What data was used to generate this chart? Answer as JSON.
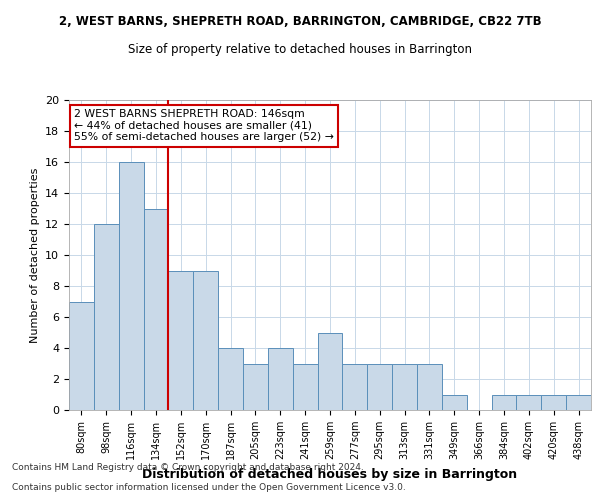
{
  "title1": "2, WEST BARNS, SHEPRETH ROAD, BARRINGTON, CAMBRIDGE, CB22 7TB",
  "title2": "Size of property relative to detached houses in Barrington",
  "xlabel": "Distribution of detached houses by size in Barrington",
  "ylabel": "Number of detached properties",
  "categories": [
    "80sqm",
    "98sqm",
    "116sqm",
    "134sqm",
    "152sqm",
    "170sqm",
    "187sqm",
    "205sqm",
    "223sqm",
    "241sqm",
    "259sqm",
    "277sqm",
    "295sqm",
    "313sqm",
    "331sqm",
    "349sqm",
    "366sqm",
    "384sqm",
    "402sqm",
    "420sqm",
    "438sqm"
  ],
  "values": [
    7,
    12,
    16,
    13,
    9,
    9,
    4,
    3,
    4,
    3,
    5,
    3,
    3,
    3,
    3,
    1,
    0,
    1,
    1,
    1,
    1
  ],
  "bar_color": "#c9d9e8",
  "bar_edge_color": "#5a8fba",
  "ref_line_x": 3.5,
  "ref_line_color": "#cc0000",
  "ylim": [
    0,
    20
  ],
  "yticks": [
    0,
    2,
    4,
    6,
    8,
    10,
    12,
    14,
    16,
    18,
    20
  ],
  "annotation_text": "2 WEST BARNS SHEPRETH ROAD: 146sqm\n← 44% of detached houses are smaller (41)\n55% of semi-detached houses are larger (52) →",
  "annotation_box_color": "#ffffff",
  "annotation_box_edge": "#cc0000",
  "footer1": "Contains HM Land Registry data © Crown copyright and database right 2024.",
  "footer2": "Contains public sector information licensed under the Open Government Licence v3.0.",
  "bg_color": "#ffffff",
  "grid_color": "#c8d8e8"
}
